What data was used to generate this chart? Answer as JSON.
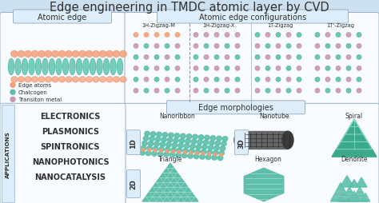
{
  "title": "Edge engineering in TMDC atomic layer by CVD",
  "title_fontsize": 10.5,
  "bg_color": "#cde0f0",
  "panel_bg": "#ddeefa",
  "white": "#f8fbff",
  "border_color": "#9ab0c8",
  "section1_label": "Atomic edge",
  "section2_label": "Atomic edge configurations",
  "section3_label": "Edge morphologies",
  "config_labels": [
    "1H-Zigzag-M",
    "1H-Zigzag-X",
    "1T-Zigzag",
    "1T'-Zigzag"
  ],
  "legend_items": [
    {
      "label": "Edge atoms",
      "color": "#f4a07a"
    },
    {
      "label": "Chalcogen",
      "color": "#6dbfaa"
    },
    {
      "label": "Transiton metal",
      "color": "#d8a0b8"
    }
  ],
  "applications": [
    "ELECTRONICS",
    "PLASMONICS",
    "SPINTRONICS",
    "NANOPHOTONICS",
    "NANOCATALYSIS"
  ],
  "app_label": "APPLICATIONS",
  "morph_1d": "Nanoribbon",
  "morph_3d": "Nanotube",
  "morph_spiral": "Spiral",
  "morph_triangle": "Triangle",
  "morph_hexagon": "Hexagon",
  "morph_dendrite": "Dendrite",
  "teal": "#5dbfab",
  "teal_dark": "#3aaa8a",
  "teal_light": "#8dd8c8",
  "teal_mid": "#4db89e",
  "salmon": "#f4a07a",
  "pink": "#c898b0",
  "dark_gray": "#303030",
  "label_gray": "#505050",
  "nanotube_dark": "#3a3a3a",
  "nanotube_mid": "#666666"
}
